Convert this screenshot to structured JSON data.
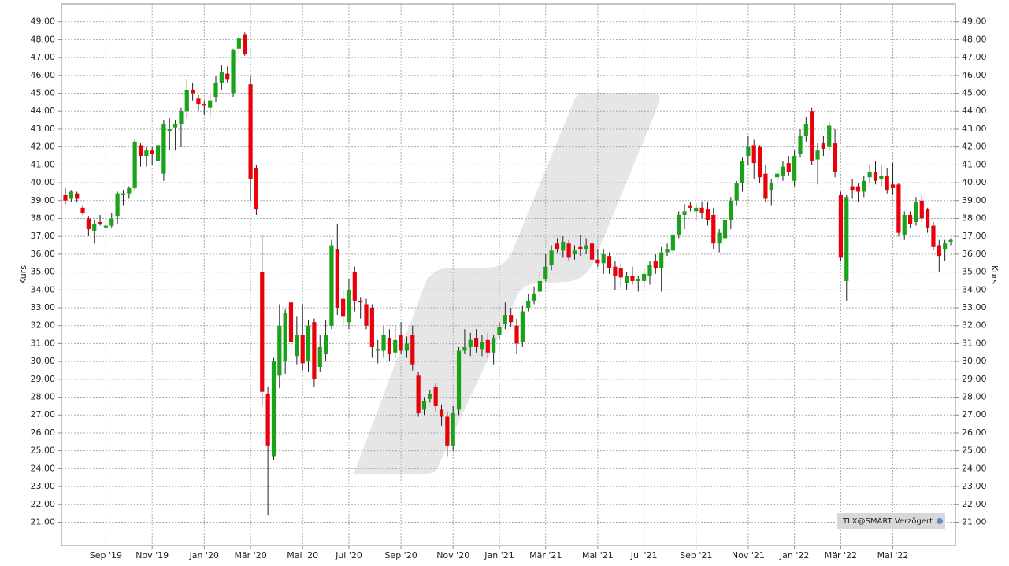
{
  "chart_data": {
    "type": "candlestick",
    "y_label": "Kurs",
    "source": "TLX@SMART Verzögert",
    "up_color": "#1aa31a",
    "down_color": "#e8000b",
    "grid": true,
    "ylim": [
      19.7,
      50.0
    ],
    "yticks": [
      {
        "value": 21,
        "label": "21.00"
      },
      {
        "value": 22,
        "label": "22.00"
      },
      {
        "value": 23,
        "label": "23.00"
      },
      {
        "value": 24,
        "label": "24.00"
      },
      {
        "value": 25,
        "label": "25.00"
      },
      {
        "value": 26,
        "label": "26.00"
      },
      {
        "value": 27,
        "label": "27.00"
      },
      {
        "value": 28,
        "label": "28.00"
      },
      {
        "value": 29,
        "label": "29.00"
      },
      {
        "value": 30,
        "label": "30.00"
      },
      {
        "value": 31,
        "label": "31.00"
      },
      {
        "value": 32,
        "label": "32.00"
      },
      {
        "value": 33,
        "label": "33.00"
      },
      {
        "value": 34,
        "label": "34.00"
      },
      {
        "value": 35,
        "label": "35.00"
      },
      {
        "value": 36,
        "label": "36.00"
      },
      {
        "value": 37,
        "label": "37.00"
      },
      {
        "value": 38,
        "label": "38.00"
      },
      {
        "value": 39,
        "label": "39.00"
      },
      {
        "value": 40,
        "label": "40.00"
      },
      {
        "value": 41,
        "label": "41.00"
      },
      {
        "value": 42,
        "label": "42.00"
      },
      {
        "value": 43,
        "label": "43.00"
      },
      {
        "value": 44,
        "label": "44.00"
      },
      {
        "value": 45,
        "label": "45.00"
      },
      {
        "value": 46,
        "label": "46.00"
      },
      {
        "value": 47,
        "label": "47.00"
      },
      {
        "value": 48,
        "label": "48.00"
      },
      {
        "value": 49,
        "label": "49.00"
      }
    ],
    "categories": [
      null,
      null,
      null,
      null,
      null,
      null,
      null,
      "Sep '19",
      null,
      null,
      null,
      null,
      null,
      null,
      null,
      "Nov '19",
      null,
      null,
      null,
      null,
      null,
      null,
      null,
      null,
      "Jan '20",
      null,
      null,
      null,
      null,
      null,
      null,
      null,
      "Mär '20",
      null,
      null,
      null,
      null,
      null,
      null,
      null,
      null,
      "Mai '20",
      null,
      null,
      null,
      null,
      null,
      null,
      null,
      "Jul '20",
      null,
      null,
      null,
      null,
      null,
      null,
      null,
      null,
      "Sep '20",
      null,
      null,
      null,
      null,
      null,
      null,
      null,
      null,
      "Nov '20",
      null,
      null,
      null,
      null,
      null,
      null,
      null,
      "Jan '21",
      null,
      null,
      null,
      null,
      null,
      null,
      null,
      "Mär '21",
      null,
      null,
      null,
      null,
      null,
      null,
      null,
      null,
      "Mai '21",
      null,
      null,
      null,
      null,
      null,
      null,
      null,
      "Jul '21",
      null,
      null,
      null,
      null,
      null,
      null,
      null,
      null,
      "Sep '21",
      null,
      null,
      null,
      null,
      null,
      null,
      null,
      null,
      "Nov '21",
      null,
      null,
      null,
      null,
      null,
      null,
      null,
      "Jan '22",
      null,
      null,
      null,
      null,
      null,
      null,
      null,
      "Mär '22",
      null,
      null,
      null,
      null,
      null,
      null,
      null,
      null,
      "Mai '22",
      null,
      null,
      null,
      null,
      null,
      null,
      null,
      null,
      null,
      null
    ],
    "ohlc": [
      [
        39.3,
        39.7,
        38.8,
        39.0
      ],
      [
        39.1,
        39.6,
        38.9,
        39.5
      ],
      [
        39.4,
        39.5,
        38.9,
        39.1
      ],
      [
        38.6,
        38.7,
        38.2,
        38.3
      ],
      [
        38.0,
        38.1,
        37.0,
        37.4
      ],
      [
        37.3,
        37.9,
        36.6,
        37.7
      ],
      [
        37.8,
        38.2,
        37.6,
        37.7
      ],
      [
        37.5,
        38.4,
        37.0,
        37.6
      ],
      [
        37.6,
        38.3,
        37.5,
        38.0
      ],
      [
        38.1,
        39.5,
        37.7,
        39.4
      ],
      [
        39.3,
        39.6,
        38.7,
        39.4
      ],
      [
        39.4,
        39.8,
        39.1,
        39.7
      ],
      [
        39.7,
        42.4,
        39.6,
        42.3
      ],
      [
        42.1,
        42.2,
        40.9,
        41.5
      ],
      [
        41.5,
        42.0,
        40.9,
        41.8
      ],
      [
        41.8,
        42.0,
        41.0,
        41.6
      ],
      [
        41.2,
        42.3,
        40.5,
        42.1
      ],
      [
        40.5,
        43.5,
        40.1,
        43.3
      ],
      [
        42.9,
        43.6,
        41.8,
        43.0
      ],
      [
        43.1,
        43.5,
        41.8,
        43.3
      ],
      [
        43.3,
        44.2,
        42.0,
        44.0
      ],
      [
        44.0,
        45.8,
        43.6,
        45.2
      ],
      [
        45.2,
        45.6,
        44.6,
        45.0
      ],
      [
        44.7,
        44.9,
        44.0,
        44.4
      ],
      [
        44.4,
        44.6,
        43.8,
        44.3
      ],
      [
        44.2,
        45.0,
        43.6,
        44.6
      ],
      [
        44.8,
        46.0,
        44.5,
        45.6
      ],
      [
        45.6,
        46.6,
        45.2,
        46.2
      ],
      [
        46.1,
        46.5,
        45.6,
        45.8
      ],
      [
        45.0,
        47.5,
        44.8,
        47.4
      ],
      [
        47.5,
        48.3,
        47.2,
        48.1
      ],
      [
        48.3,
        48.4,
        47.1,
        47.2
      ],
      [
        45.5,
        46.0,
        39.0,
        40.2
      ],
      [
        40.8,
        41.0,
        38.2,
        38.5
      ],
      [
        35.0,
        37.1,
        27.5,
        28.3
      ],
      [
        28.2,
        28.6,
        21.4,
        25.3
      ],
      [
        24.7,
        30.2,
        24.5,
        30.0
      ],
      [
        29.2,
        33.2,
        28.5,
        32.0
      ],
      [
        30.0,
        32.9,
        29.3,
        32.7
      ],
      [
        33.3,
        33.5,
        29.8,
        31.1
      ],
      [
        30.3,
        32.5,
        29.8,
        31.5
      ],
      [
        31.5,
        33.2,
        29.5,
        29.9
      ],
      [
        30.0,
        32.3,
        29.4,
        32.0
      ],
      [
        32.2,
        32.4,
        28.6,
        29.0
      ],
      [
        29.7,
        31.5,
        29.4,
        30.8
      ],
      [
        30.4,
        32.3,
        30.0,
        31.5
      ],
      [
        32.0,
        36.8,
        31.8,
        36.5
      ],
      [
        36.3,
        37.7,
        32.6,
        33.0
      ],
      [
        33.5,
        34.0,
        32.0,
        32.5
      ],
      [
        32.2,
        34.6,
        31.8,
        34.0
      ],
      [
        35.0,
        35.3,
        32.8,
        33.4
      ],
      [
        33.4,
        33.6,
        32.4,
        33.3
      ],
      [
        33.2,
        33.5,
        31.8,
        32.0
      ],
      [
        33.0,
        33.2,
        30.2,
        30.8
      ],
      [
        30.6,
        31.2,
        29.9,
        30.7
      ],
      [
        30.6,
        32.0,
        30.2,
        31.5
      ],
      [
        31.3,
        31.8,
        30.0,
        30.4
      ],
      [
        30.5,
        32.0,
        30.2,
        31.2
      ],
      [
        31.5,
        32.2,
        30.4,
        30.6
      ],
      [
        30.6,
        31.4,
        30.2,
        31.0
      ],
      [
        31.5,
        32.0,
        29.5,
        29.8
      ],
      [
        29.2,
        29.4,
        26.9,
        27.1
      ],
      [
        27.3,
        28.0,
        27.0,
        27.8
      ],
      [
        27.9,
        28.4,
        27.7,
        28.2
      ],
      [
        28.6,
        28.8,
        27.2,
        27.5
      ],
      [
        27.3,
        27.6,
        26.4,
        26.9
      ],
      [
        26.9,
        27.2,
        24.7,
        25.3
      ],
      [
        25.3,
        27.5,
        25.0,
        27.1
      ],
      [
        27.3,
        30.8,
        27.0,
        30.6
      ],
      [
        30.6,
        31.8,
        30.4,
        30.8
      ],
      [
        30.8,
        31.6,
        30.3,
        31.2
      ],
      [
        31.3,
        31.8,
        30.5,
        30.8
      ],
      [
        30.7,
        31.5,
        30.3,
        31.1
      ],
      [
        31.2,
        31.6,
        30.2,
        30.5
      ],
      [
        30.5,
        31.5,
        29.8,
        31.3
      ],
      [
        31.5,
        32.2,
        31.2,
        31.9
      ],
      [
        32.1,
        33.3,
        31.8,
        32.6
      ],
      [
        32.6,
        33.0,
        31.9,
        32.2
      ],
      [
        32.0,
        32.4,
        30.4,
        31.0
      ],
      [
        31.1,
        33.1,
        30.8,
        32.8
      ],
      [
        33.0,
        33.8,
        32.8,
        33.4
      ],
      [
        33.4,
        34.2,
        33.2,
        33.8
      ],
      [
        33.9,
        35.0,
        33.6,
        34.5
      ],
      [
        34.6,
        36.0,
        34.5,
        35.3
      ],
      [
        35.4,
        36.5,
        35.1,
        36.2
      ],
      [
        36.6,
        36.9,
        36.1,
        36.3
      ],
      [
        36.2,
        37.0,
        35.8,
        36.7
      ],
      [
        36.6,
        36.8,
        35.6,
        35.8
      ],
      [
        36.0,
        36.5,
        35.7,
        36.2
      ],
      [
        36.4,
        37.1,
        35.9,
        36.3
      ],
      [
        36.3,
        36.9,
        36.0,
        36.5
      ],
      [
        36.6,
        37.0,
        35.5,
        35.7
      ],
      [
        35.7,
        36.3,
        35.3,
        35.5
      ],
      [
        35.5,
        36.3,
        34.9,
        36.0
      ],
      [
        35.9,
        36.1,
        34.9,
        35.2
      ],
      [
        35.3,
        35.6,
        34.0,
        34.8
      ],
      [
        35.2,
        35.5,
        34.2,
        34.7
      ],
      [
        34.4,
        35.0,
        34.0,
        34.8
      ],
      [
        34.8,
        35.3,
        34.3,
        34.5
      ],
      [
        34.5,
        34.8,
        33.9,
        34.6
      ],
      [
        34.5,
        35.2,
        34.2,
        34.9
      ],
      [
        34.8,
        35.6,
        34.3,
        35.4
      ],
      [
        35.6,
        36.0,
        34.9,
        35.2
      ],
      [
        35.2,
        36.4,
        33.9,
        36.1
      ],
      [
        36.1,
        36.6,
        35.9,
        36.3
      ],
      [
        36.2,
        37.3,
        36.0,
        37.1
      ],
      [
        37.1,
        38.4,
        36.9,
        38.2
      ],
      [
        38.2,
        38.8,
        37.4,
        38.4
      ],
      [
        38.7,
        38.9,
        38.4,
        38.6
      ],
      [
        38.4,
        38.8,
        37.9,
        38.6
      ],
      [
        38.6,
        38.9,
        38.0,
        38.3
      ],
      [
        38.5,
        38.9,
        37.6,
        37.9
      ],
      [
        38.2,
        38.6,
        36.3,
        36.6
      ],
      [
        36.6,
        37.4,
        36.1,
        37.2
      ],
      [
        36.9,
        38.0,
        36.7,
        37.9
      ],
      [
        37.9,
        39.2,
        37.4,
        39.0
      ],
      [
        39.0,
        40.1,
        38.7,
        40.0
      ],
      [
        40.0,
        41.4,
        39.5,
        41.2
      ],
      [
        41.5,
        42.6,
        41.0,
        42.0
      ],
      [
        42.1,
        42.4,
        40.2,
        41.1
      ],
      [
        42.0,
        42.1,
        40.0,
        40.3
      ],
      [
        40.5,
        41.0,
        38.9,
        39.1
      ],
      [
        39.6,
        40.2,
        38.7,
        40.0
      ],
      [
        40.3,
        40.7,
        40.0,
        40.5
      ],
      [
        40.4,
        41.2,
        40.1,
        40.9
      ],
      [
        41.1,
        41.5,
        40.4,
        40.6
      ],
      [
        40.1,
        41.8,
        39.8,
        41.5
      ],
      [
        41.6,
        43.0,
        41.4,
        42.6
      ],
      [
        42.6,
        43.7,
        42.3,
        43.3
      ],
      [
        44.0,
        44.2,
        41.0,
        41.2
      ],
      [
        41.3,
        42.2,
        39.9,
        41.8
      ],
      [
        42.2,
        42.6,
        41.5,
        41.9
      ],
      [
        42.0,
        43.4,
        41.8,
        43.2
      ],
      [
        42.2,
        43.0,
        40.3,
        40.6
      ],
      [
        39.3,
        39.5,
        35.6,
        35.8
      ],
      [
        34.5,
        39.3,
        33.4,
        39.2
      ],
      [
        39.8,
        40.2,
        39.1,
        39.6
      ],
      [
        39.8,
        40.0,
        38.9,
        39.5
      ],
      [
        39.5,
        40.4,
        39.2,
        40.1
      ],
      [
        40.3,
        41.0,
        40.0,
        40.6
      ],
      [
        40.6,
        41.2,
        39.9,
        40.1
      ],
      [
        40.2,
        41.0,
        39.8,
        40.4
      ],
      [
        40.4,
        40.8,
        39.4,
        39.6
      ],
      [
        39.9,
        41.1,
        39.3,
        39.7
      ],
      [
        39.9,
        40.0,
        37.0,
        37.2
      ],
      [
        37.1,
        38.4,
        36.8,
        38.2
      ],
      [
        38.2,
        38.4,
        37.5,
        37.7
      ],
      [
        37.8,
        39.2,
        37.6,
        38.9
      ],
      [
        39.0,
        39.3,
        37.8,
        38.0
      ],
      [
        38.5,
        38.6,
        37.2,
        37.5
      ],
      [
        37.6,
        37.8,
        36.2,
        36.4
      ],
      [
        36.5,
        36.8,
        35.0,
        35.9
      ],
      [
        36.3,
        36.8,
        35.6,
        36.6
      ],
      [
        36.7,
        36.9,
        36.5,
        36.8
      ]
    ]
  }
}
